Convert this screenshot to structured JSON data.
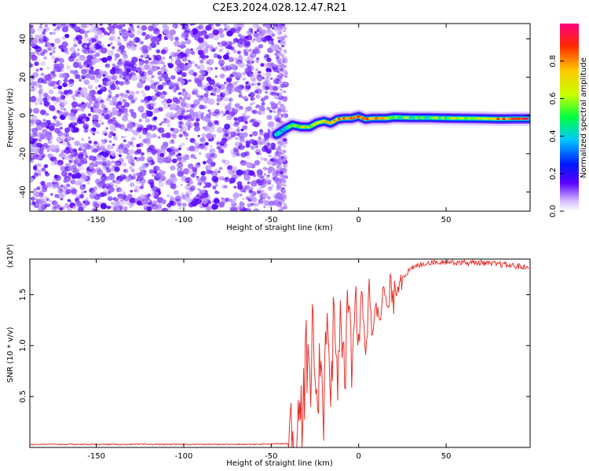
{
  "title": "C2E3.2024.028.12.47.R21",
  "chart_data": [
    {
      "type": "heatmap",
      "xlabel": "Height of straight line (km)",
      "ylabel": "Frequency (Hz)",
      "xlim": [
        -188,
        98
      ],
      "ylim": [
        -50,
        48
      ],
      "xticks": [
        -150,
        -100,
        -50,
        0,
        50
      ],
      "yticks": [
        -40,
        -20,
        0,
        20,
        40
      ],
      "colorbar": {
        "label": "Normalized spectral amplitude",
        "range": [
          0,
          1
        ],
        "ticks": [
          0.0,
          0.2,
          0.4,
          0.6,
          0.8
        ]
      },
      "noise_region_x": [
        -188,
        -45
      ],
      "signal_ridge": {
        "x": [
          -47,
          -42,
          -38,
          -33,
          -28,
          -24,
          -20,
          -16,
          -12,
          -8,
          -4,
          0,
          4,
          8,
          12,
          16,
          20,
          30,
          40,
          50,
          60,
          70,
          80,
          90,
          97
        ],
        "freq_hz": [
          -10,
          -7,
          -5,
          -6,
          -6,
          -4,
          -3,
          -4,
          -2,
          -1.5,
          -1.5,
          -0.5,
          -2,
          -1.5,
          -1.5,
          -1.5,
          -1,
          -1.2,
          -1.2,
          -1.4,
          -1.5,
          -1.6,
          -1.8,
          -1.7,
          -1.7
        ],
        "amplitude": [
          0.35,
          0.45,
          0.55,
          0.6,
          0.6,
          0.62,
          0.65,
          0.7,
          0.75,
          0.78,
          0.82,
          0.85,
          0.8,
          0.82,
          0.85,
          0.7,
          0.55,
          0.5,
          0.5,
          0.55,
          0.6,
          0.7,
          0.8,
          0.9,
          0.95
        ]
      }
    },
    {
      "type": "line",
      "xlabel": "Height of straight line (km)",
      "ylabel": "SNR (10 * v/v)",
      "scale_label": "(x10⁴)",
      "xlim": [
        -188,
        98
      ],
      "ylim": [
        0,
        1.85
      ],
      "xticks": [
        -150,
        -100,
        -50,
        0,
        50
      ],
      "yticks": [
        0.5,
        1.0,
        1.5
      ],
      "color": "#e8302a",
      "series": [
        {
          "x": [
            -188,
            -120,
            -60,
            -40,
            -35,
            -32,
            -30,
            -28,
            -26,
            -24,
            -22,
            -20,
            -18,
            -16,
            -14,
            -12,
            -10,
            -8,
            -6,
            -4,
            -2,
            0,
            2,
            4,
            6,
            8,
            10,
            12,
            14,
            16,
            18,
            20,
            22,
            25,
            28,
            32,
            36,
            40,
            45,
            50,
            55,
            60,
            65,
            70,
            75,
            80,
            85,
            90,
            95,
            97
          ],
          "y": [
            0.03,
            0.03,
            0.03,
            0.04,
            0.12,
            0.4,
            0.9,
            0.5,
            1.2,
            0.3,
            1.0,
            0.4,
            1.35,
            0.5,
            1.4,
            0.7,
            1.3,
            0.6,
            1.55,
            0.8,
            1.5,
            0.9,
            1.55,
            1.0,
            1.5,
            1.2,
            1.6,
            1.1,
            1.6,
            1.3,
            1.55,
            1.45,
            1.62,
            1.68,
            1.72,
            1.77,
            1.8,
            1.82,
            1.82,
            1.83,
            1.82,
            1.82,
            1.81,
            1.82,
            1.8,
            1.8,
            1.79,
            1.78,
            1.77,
            1.75
          ]
        }
      ]
    }
  ]
}
